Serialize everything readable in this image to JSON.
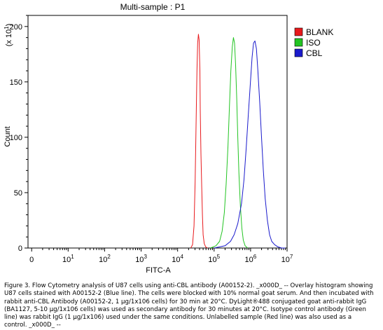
{
  "chart_data": {
    "type": "line",
    "title": "Multi-sample : P1",
    "xlabel": "FITC-A",
    "ylabel": "Count",
    "y_multiplier": "(x 10",
    "y_multiplier_exp": "1",
    "x_scale": "log",
    "xlim": [
      -0.1,
      7.0
    ],
    "ylim": [
      0,
      210
    ],
    "x_ticks": [
      {
        "value": 0,
        "base": "0",
        "exp": ""
      },
      {
        "value": 1,
        "base": "10",
        "exp": "1"
      },
      {
        "value": 2,
        "base": "10",
        "exp": "2"
      },
      {
        "value": 3,
        "base": "10",
        "exp": "3"
      },
      {
        "value": 4,
        "base": "10",
        "exp": "4"
      },
      {
        "value": 5,
        "base": "10",
        "exp": "5"
      },
      {
        "value": 6,
        "base": "10",
        "exp": "6"
      },
      {
        "value": 7,
        "base": "10",
        "exp": "7"
      }
    ],
    "y_ticks": [
      0,
      50,
      100,
      150,
      200
    ],
    "legend_position": "top-right, outside plot",
    "series": [
      {
        "name": "BLANK",
        "color": "#e8191c",
        "x": [
          4.36,
          4.41,
          4.45,
          4.48,
          4.51,
          4.53,
          4.55,
          4.57,
          4.59,
          4.61,
          4.62,
          4.64,
          4.66,
          4.68,
          4.7,
          4.73,
          4.77,
          4.82
        ],
        "y": [
          0,
          3,
          20,
          60,
          118,
          160,
          185,
          193,
          188,
          160,
          125,
          85,
          55,
          30,
          12,
          4,
          1,
          0
        ]
      },
      {
        "name": "ISO",
        "color": "#22c422",
        "x": [
          4.9,
          5.05,
          5.15,
          5.22,
          5.28,
          5.33,
          5.38,
          5.42,
          5.46,
          5.5,
          5.53,
          5.56,
          5.59,
          5.62,
          5.65,
          5.68,
          5.72,
          5.76,
          5.8,
          5.85,
          5.92
        ],
        "y": [
          0,
          2,
          6,
          15,
          32,
          58,
          92,
          128,
          160,
          182,
          190,
          185,
          165,
          135,
          100,
          68,
          38,
          18,
          7,
          2,
          0
        ]
      },
      {
        "name": "CBL",
        "color": "#1a1acc",
        "x": [
          5.0,
          5.3,
          5.45,
          5.55,
          5.65,
          5.75,
          5.82,
          5.88,
          5.94,
          6.0,
          6.04,
          6.08,
          6.12,
          6.16,
          6.2,
          6.25,
          6.3,
          6.35,
          6.4,
          6.46,
          6.52,
          6.58,
          6.66,
          6.75,
          6.85,
          6.95
        ],
        "y": [
          0,
          2,
          6,
          12,
          22,
          40,
          62,
          90,
          122,
          152,
          172,
          185,
          187,
          180,
          160,
          132,
          100,
          70,
          45,
          25,
          12,
          6,
          3,
          1,
          0,
          0
        ]
      }
    ]
  },
  "caption": "Figure 3. Flow Cytometry analysis of U87 cells using anti-CBL antibody (A00152-2). _x000D_ -- Overlay histogram showing U87 cells stained with A00152-2 (Blue line). The cells were blocked with 10% normal goat serum. And then incubated with rabbit anti-CBL Antibody (A00152-2, 1 μg/1x106 cells) for 30 min at 20°C. DyLight®488 conjugated goat anti-rabbit IgG (BA1127, 5-10 μg/1x106 cells) was used as secondary antibody for 30 minutes at 20°C. Isotype control antibody (Green line) was rabbit IgG (1 μg/1x106) used under the same conditions. Unlabelled sample (Red line) was also used as a control. _x000D_ --"
}
